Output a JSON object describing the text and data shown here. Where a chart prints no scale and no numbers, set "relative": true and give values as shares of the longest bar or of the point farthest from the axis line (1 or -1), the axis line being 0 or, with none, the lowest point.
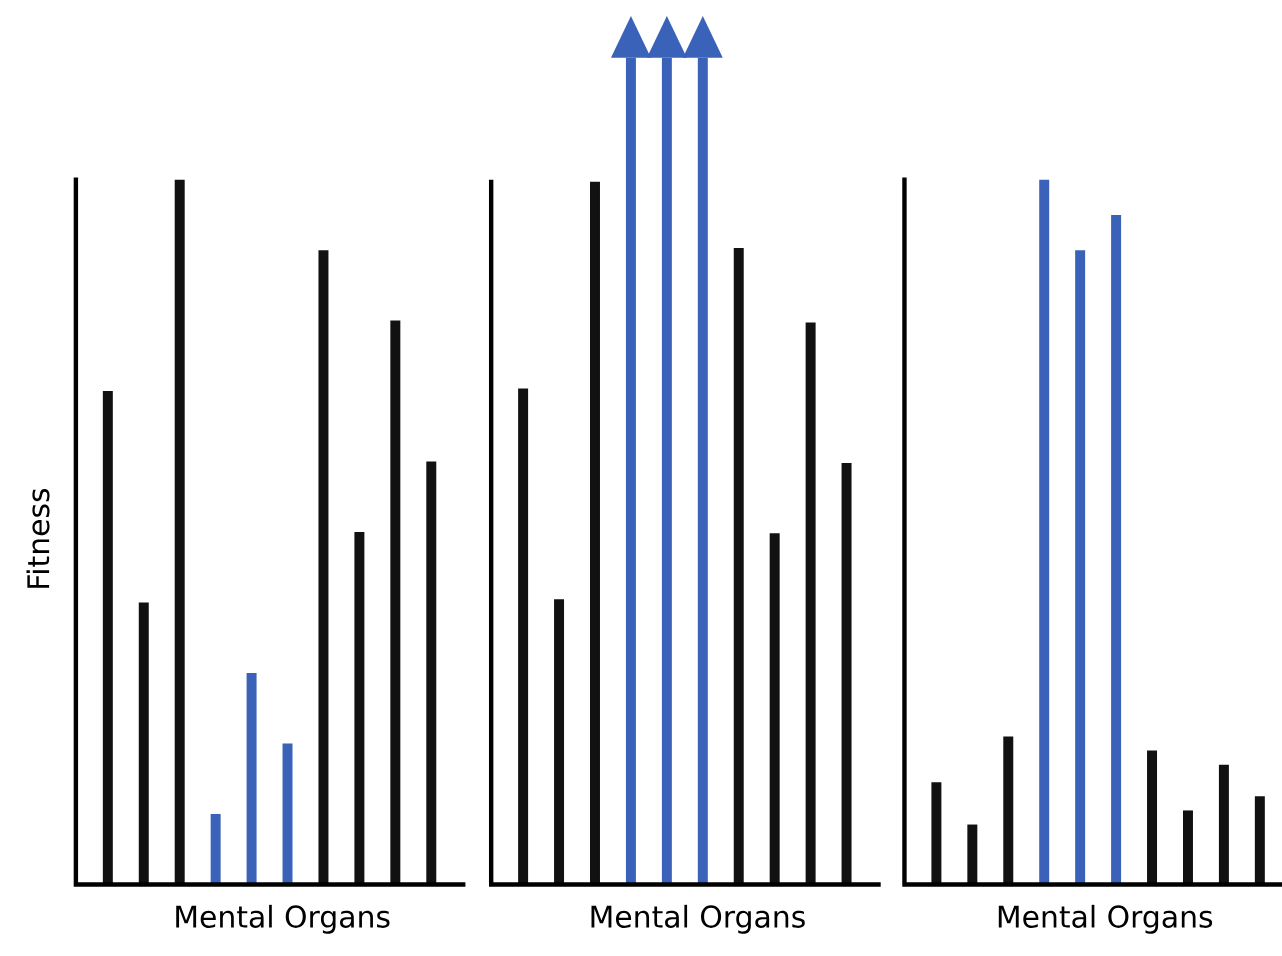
{
  "chart_data": [
    {
      "type": "bar",
      "relative": true,
      "xlabel": "Mental Organs",
      "ylabel": "Fitness",
      "categories": [
        null,
        null,
        null,
        null,
        null,
        null,
        null,
        null,
        null,
        null
      ],
      "values": [
        0.7,
        0.4,
        1.0,
        0.1,
        0.3,
        0.2,
        0.9,
        0.5,
        0.8,
        0.6
      ],
      "colors": [
        "#111111",
        "#111111",
        "#111111",
        "#3a62b8",
        "#3a62b8",
        "#3a62b8",
        "#111111",
        "#111111",
        "#111111",
        "#111111"
      ]
    },
    {
      "type": "bar",
      "relative": true,
      "xlabel": "Mental Organs",
      "categories": [
        null,
        null,
        null,
        null,
        null,
        null,
        null,
        null,
        null,
        null
      ],
      "values": [
        0.6,
        0.345,
        0.85,
        1.0,
        1.0,
        1.0,
        0.77,
        0.425,
        0.68,
        0.51
      ],
      "colors": [
        "#111111",
        "#111111",
        "#111111",
        "#3a62b8",
        "#3a62b8",
        "#3a62b8",
        "#111111",
        "#111111",
        "#111111",
        "#111111"
      ]
    },
    {
      "type": "bar",
      "relative": true,
      "xlabel": "Mental Organs",
      "categories": [
        null,
        null,
        null,
        null,
        null,
        null,
        null,
        null,
        null,
        null
      ],
      "values": [
        0.145,
        0.085,
        0.21,
        1.0,
        0.9,
        0.95,
        0.19,
        0.105,
        0.17,
        0.125
      ],
      "colors": [
        "#111111",
        "#111111",
        "#111111",
        "#3a62b8",
        "#3a62b8",
        "#3a62b8",
        "#111111",
        "#111111",
        "#111111",
        "#111111"
      ]
    }
  ]
}
